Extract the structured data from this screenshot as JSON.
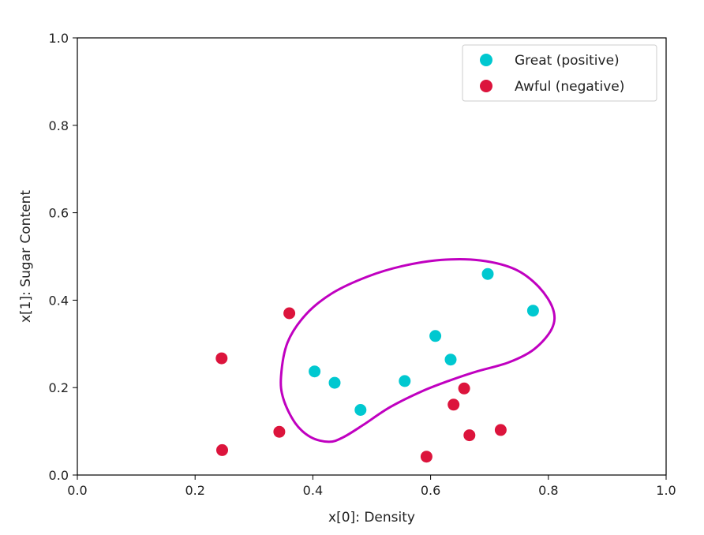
{
  "chart_data": {
    "type": "scatter",
    "title": "",
    "xlabel": "x[0]: Density",
    "ylabel": "x[1]: Sugar Content",
    "xlim": [
      0.0,
      1.0
    ],
    "ylim": [
      0.0,
      1.0
    ],
    "x_ticks": [
      "0.0",
      "0.2",
      "0.4",
      "0.6",
      "0.8",
      "1.0"
    ],
    "y_ticks": [
      "0.0",
      "0.2",
      "0.4",
      "0.6",
      "0.8",
      "1.0"
    ],
    "grid": false,
    "legend_position": "top-right",
    "series": [
      {
        "name": "Great (positive)",
        "color": "#00c8d0",
        "points": [
          {
            "x": 0.403,
            "y": 0.237
          },
          {
            "x": 0.437,
            "y": 0.211
          },
          {
            "x": 0.481,
            "y": 0.149
          },
          {
            "x": 0.556,
            "y": 0.215
          },
          {
            "x": 0.608,
            "y": 0.318
          },
          {
            "x": 0.634,
            "y": 0.264
          },
          {
            "x": 0.697,
            "y": 0.46
          },
          {
            "x": 0.774,
            "y": 0.376
          }
        ]
      },
      {
        "name": "Awful (negative)",
        "color": "#dc143c",
        "points": [
          {
            "x": 0.245,
            "y": 0.267
          },
          {
            "x": 0.246,
            "y": 0.057
          },
          {
            "x": 0.343,
            "y": 0.099
          },
          {
            "x": 0.36,
            "y": 0.37
          },
          {
            "x": 0.593,
            "y": 0.042
          },
          {
            "x": 0.639,
            "y": 0.161
          },
          {
            "x": 0.657,
            "y": 0.198
          },
          {
            "x": 0.666,
            "y": 0.091
          },
          {
            "x": 0.719,
            "y": 0.103
          }
        ]
      }
    ],
    "decision_boundary": {
      "color": "#c000c0",
      "points": [
        [
          0.427,
          0.076
        ],
        [
          0.451,
          0.086
        ],
        [
          0.486,
          0.115
        ],
        [
          0.532,
          0.156
        ],
        [
          0.586,
          0.192
        ],
        [
          0.632,
          0.216
        ],
        [
          0.676,
          0.236
        ],
        [
          0.733,
          0.258
        ],
        [
          0.776,
          0.288
        ],
        [
          0.806,
          0.335
        ],
        [
          0.808,
          0.379
        ],
        [
          0.784,
          0.43
        ],
        [
          0.743,
          0.471
        ],
        [
          0.684,
          0.491
        ],
        [
          0.618,
          0.492
        ],
        [
          0.552,
          0.478
        ],
        [
          0.493,
          0.454
        ],
        [
          0.433,
          0.416
        ],
        [
          0.388,
          0.367
        ],
        [
          0.357,
          0.303
        ],
        [
          0.346,
          0.226
        ],
        [
          0.35,
          0.174
        ],
        [
          0.37,
          0.119
        ],
        [
          0.396,
          0.087
        ]
      ]
    }
  }
}
